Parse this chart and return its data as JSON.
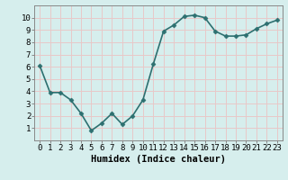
{
  "x": [
    0,
    1,
    2,
    3,
    4,
    5,
    6,
    7,
    8,
    9,
    10,
    11,
    12,
    13,
    14,
    15,
    16,
    17,
    18,
    19,
    20,
    21,
    22,
    23
  ],
  "y": [
    6.1,
    3.9,
    3.9,
    3.3,
    2.2,
    0.8,
    1.4,
    2.2,
    1.3,
    2.0,
    3.3,
    6.2,
    8.9,
    9.4,
    10.1,
    10.2,
    10.0,
    8.9,
    8.5,
    8.5,
    8.6,
    9.1,
    9.5,
    9.8
  ],
  "line_color": "#2d7070",
  "marker": "D",
  "marker_size": 2.5,
  "xlabel": "Humidex (Indice chaleur)",
  "xlim": [
    -0.5,
    23.5
  ],
  "ylim": [
    0,
    11
  ],
  "yticks": [
    1,
    2,
    3,
    4,
    5,
    6,
    7,
    8,
    9,
    10
  ],
  "xticks": [
    0,
    1,
    2,
    3,
    4,
    5,
    6,
    7,
    8,
    9,
    10,
    11,
    12,
    13,
    14,
    15,
    16,
    17,
    18,
    19,
    20,
    21,
    22,
    23
  ],
  "bg_color": "#d6eeed",
  "grid_color": "#e8c8c8",
  "axis_color": "#888888",
  "font_family": "monospace",
  "xlabel_fontsize": 7.5,
  "tick_fontsize": 6.5,
  "linewidth": 1.2
}
